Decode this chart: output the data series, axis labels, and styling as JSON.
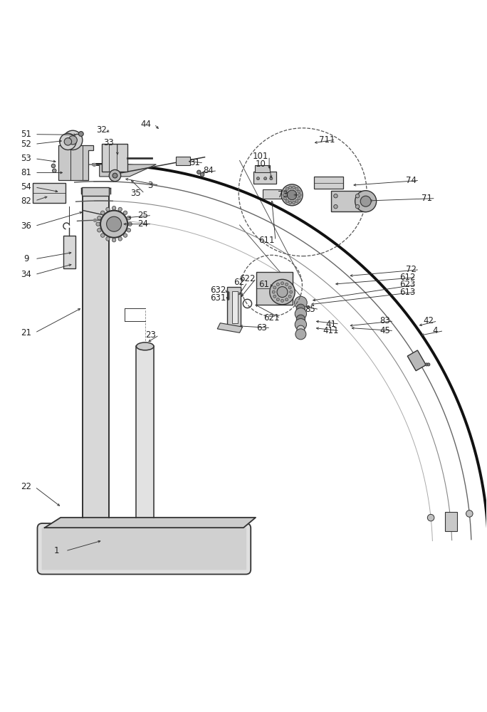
{
  "bg_color": "#ffffff",
  "line_color": "#333333",
  "dark_line": "#111111",
  "label_fontsize": 9,
  "label_color": "#222222",
  "figsize": [
    6.84,
    10.0
  ],
  "dpi": 100
}
